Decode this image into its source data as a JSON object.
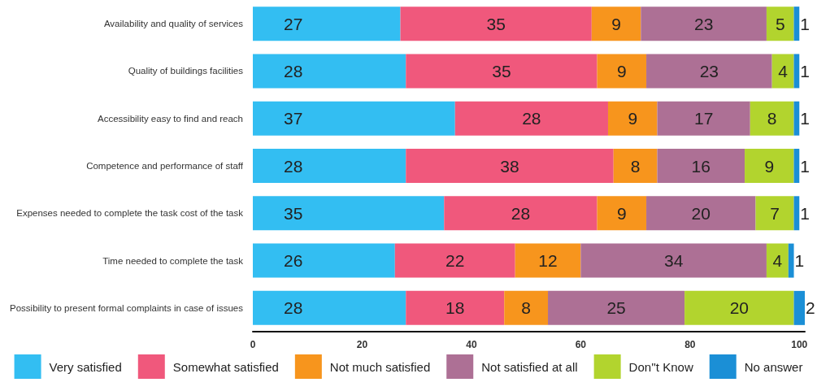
{
  "chart_data": {
    "type": "bar",
    "orientation": "horizontal",
    "stacked": true,
    "data_labels": true,
    "legend": "bottom",
    "categories": [
      "Availability and quality of services",
      "Quality of buildings facilities",
      "Accessibility easy to find and reach",
      "Competence and performance of staff",
      "Expenses needed to complete the task cost of the task",
      "Time needed to complete the task",
      "Possibility to present formal complaints in case of issues"
    ],
    "series": [
      {
        "name": "Very satisfied",
        "color": "#33bef2",
        "values": [
          27,
          28,
          37,
          28,
          35,
          26,
          28
        ]
      },
      {
        "name": "Somewhat satisfied",
        "color": "#f0587c",
        "values": [
          35,
          35,
          28,
          38,
          28,
          22,
          18
        ]
      },
      {
        "name": "Not much satisfied",
        "color": "#f7951d",
        "values": [
          9,
          9,
          9,
          8,
          9,
          12,
          8
        ]
      },
      {
        "name": "Not satisfied at all",
        "color": "#ad7095",
        "values": [
          23,
          23,
          17,
          16,
          20,
          34,
          25
        ]
      },
      {
        "name": "Don''t Know",
        "color": "#b2d42e",
        "values": [
          5,
          4,
          8,
          9,
          7,
          4,
          20
        ]
      },
      {
        "name": "No answer",
        "color": "#1b8fd6",
        "values": [
          1,
          1,
          1,
          1,
          1,
          1,
          2
        ]
      }
    ],
    "xlim": [
      0,
      101
    ],
    "xticks": [
      0,
      20,
      40,
      60,
      80,
      100
    ]
  }
}
